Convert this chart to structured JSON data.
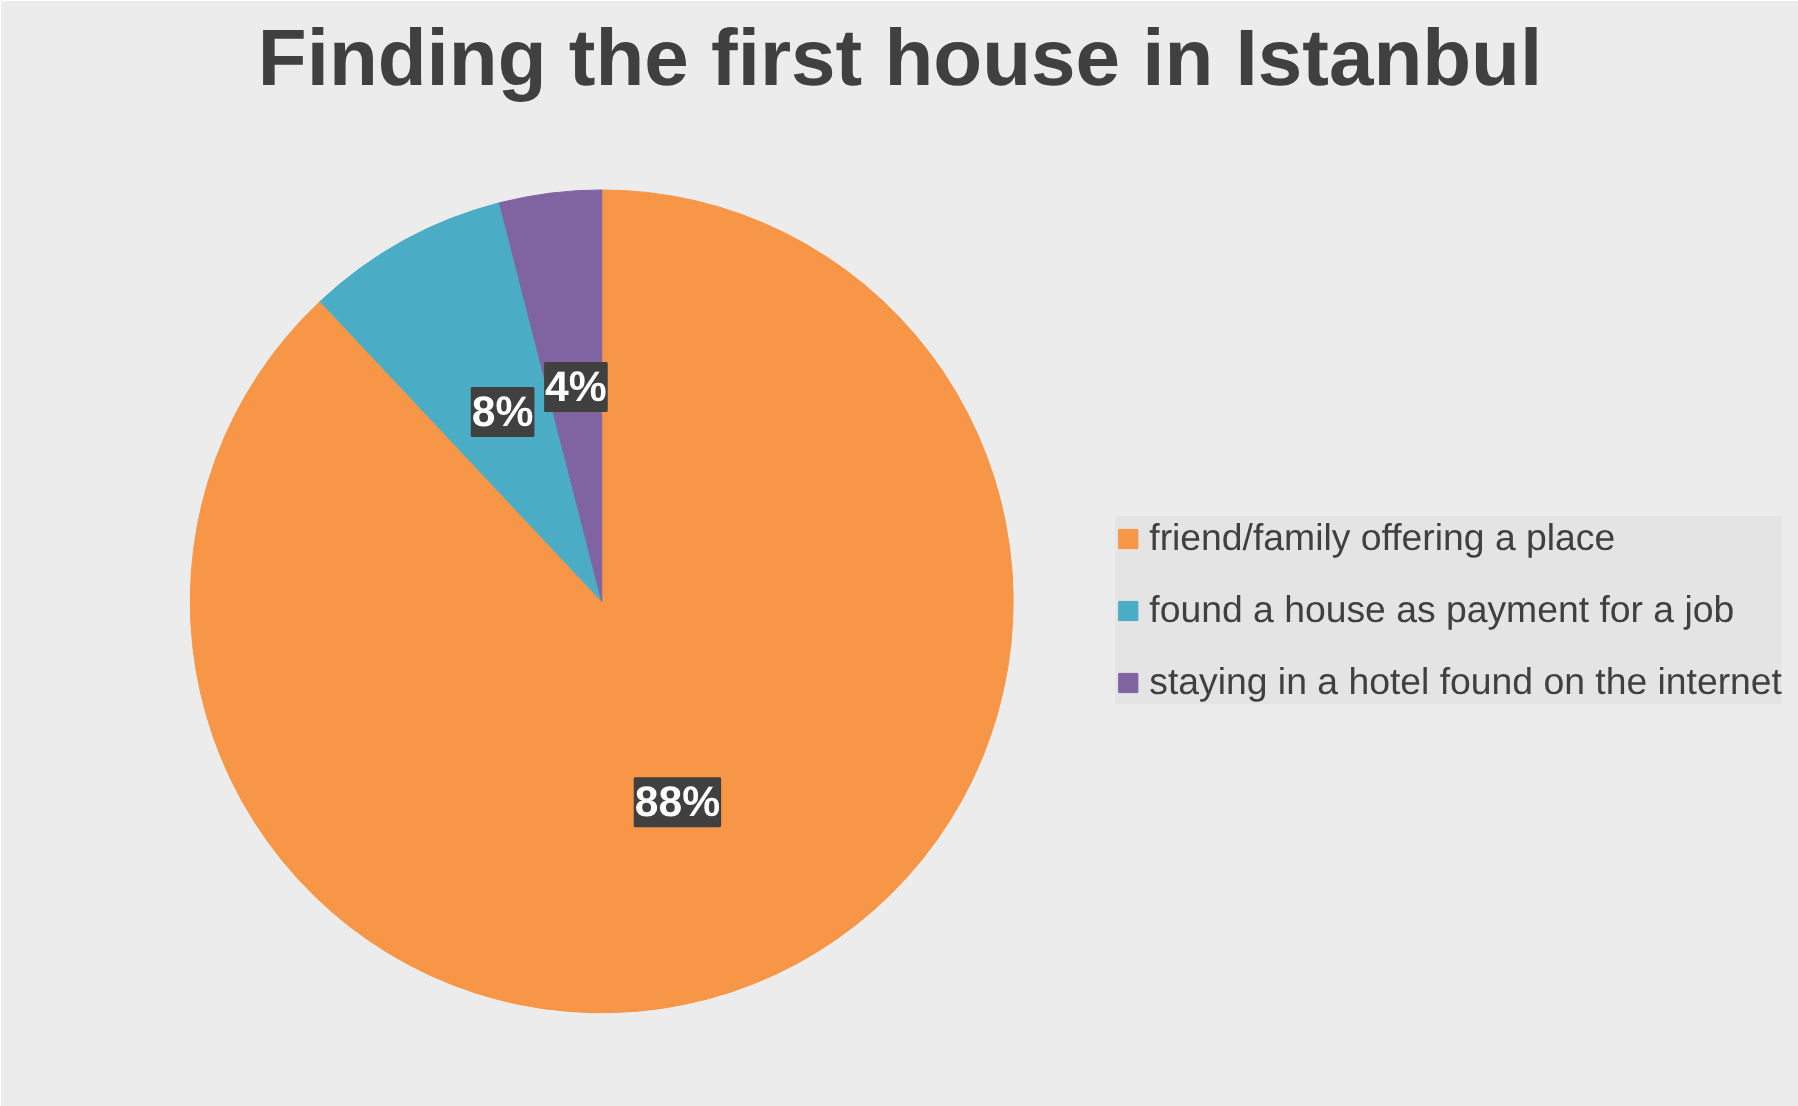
{
  "chart_data": {
    "type": "pie",
    "title": "Finding the first house in Istanbul",
    "categories": [
      "friend/family offering a place",
      "found a house as payment for a job",
      "staying in a hotel found on the internet"
    ],
    "values": [
      88,
      8,
      4
    ],
    "colors": [
      "#f79646",
      "#4bacc6",
      "#8064a2"
    ],
    "value_labels": [
      "88%",
      "8%",
      "4%"
    ],
    "legend": "right"
  }
}
